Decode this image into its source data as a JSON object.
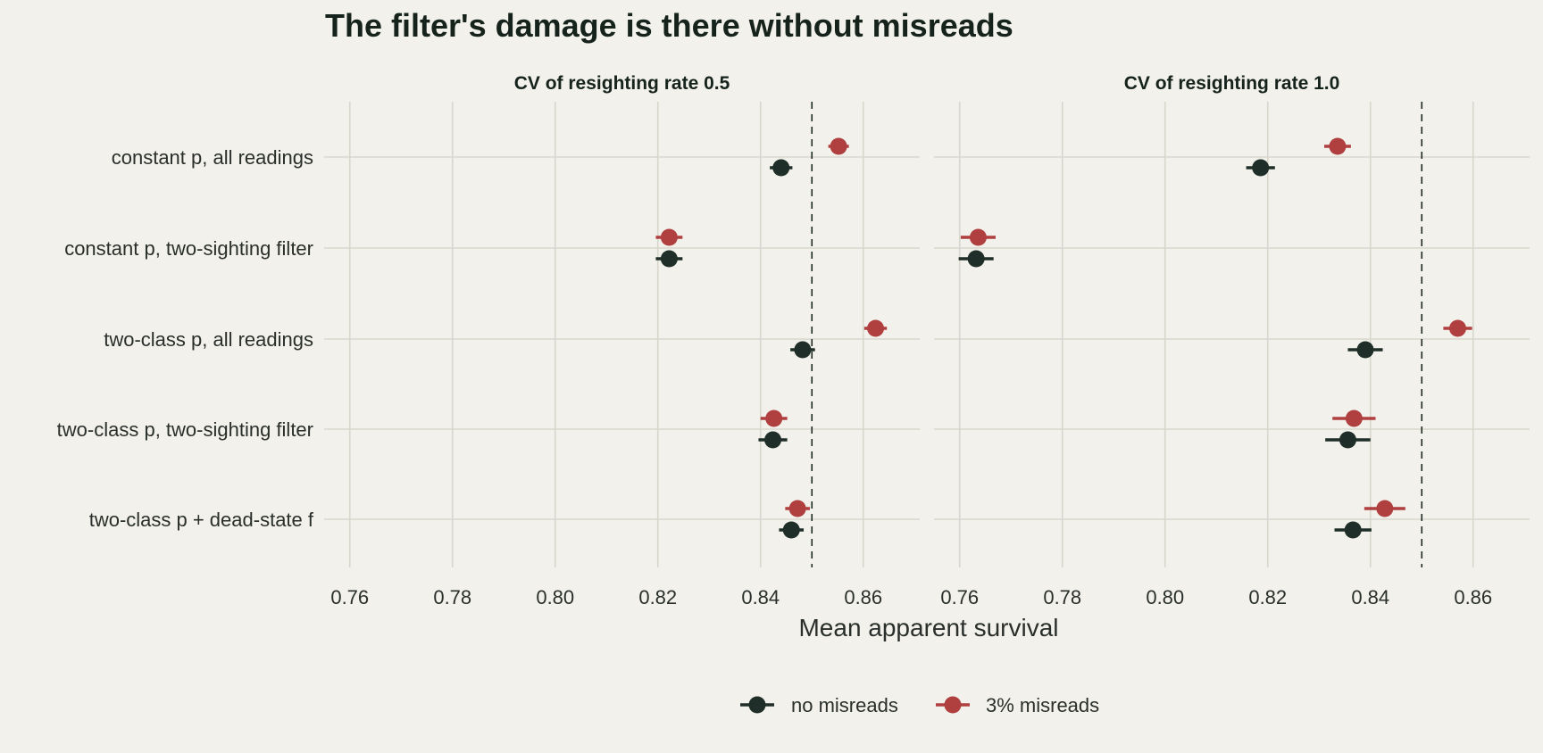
{
  "chart_data": {
    "type": "scatter",
    "title": "The filter's damage is there without misreads",
    "xlabel": "Mean apparent survival",
    "xlim": [
      0.755,
      0.871
    ],
    "x_ticks": [
      "0.76",
      "0.78",
      "0.80",
      "0.82",
      "0.84",
      "0.86"
    ],
    "reference_line": 0.85,
    "categories": [
      "constant p, all readings",
      "constant p, two-sighting filter",
      "two-class p, all readings",
      "two-class p, two-sighting filter",
      "two-class p + dead-state f"
    ],
    "legend": {
      "placement": "bottom",
      "entries": [
        {
          "label": "no misreads",
          "color": "#1f2e28"
        },
        {
          "label": "3% misreads",
          "color": "#b04040"
        }
      ]
    },
    "grid": true,
    "panels": [
      {
        "title": "CV of resighting rate 0.5",
        "series": [
          {
            "name": "no misreads",
            "color": "#1f2e28",
            "values": [
              0.844,
              0.8222,
              0.8482,
              0.8424,
              0.846
            ],
            "lower": [
              0.8418,
              0.8196,
              0.8458,
              0.8396,
              0.8436
            ],
            "upper": [
              0.8462,
              0.8248,
              0.8506,
              0.8452,
              0.8484
            ]
          },
          {
            "name": "3% misreads",
            "color": "#b04040",
            "values": [
              0.8552,
              0.8222,
              0.8624,
              0.8426,
              0.8472
            ],
            "lower": [
              0.8532,
              0.8196,
              0.8602,
              0.84,
              0.8448
            ],
            "upper": [
              0.8572,
              0.8248,
              0.8646,
              0.8452,
              0.8496
            ]
          }
        ]
      },
      {
        "title": "CV of resighting rate 1.0",
        "series": [
          {
            "name": "no misreads",
            "color": "#1f2e28",
            "values": [
              0.8186,
              0.7632,
              0.839,
              0.8356,
              0.8366
            ],
            "lower": [
              0.8158,
              0.7598,
              0.8356,
              0.8312,
              0.833
            ],
            "upper": [
              0.8214,
              0.7666,
              0.8424,
              0.84,
              0.8402
            ]
          },
          {
            "name": "3% misreads",
            "color": "#b04040",
            "values": [
              0.8336,
              0.7636,
              0.857,
              0.8368,
              0.8428
            ],
            "lower": [
              0.831,
              0.7602,
              0.8542,
              0.8326,
              0.8388
            ],
            "upper": [
              0.8362,
              0.767,
              0.8598,
              0.841,
              0.8468
            ]
          }
        ]
      }
    ]
  }
}
